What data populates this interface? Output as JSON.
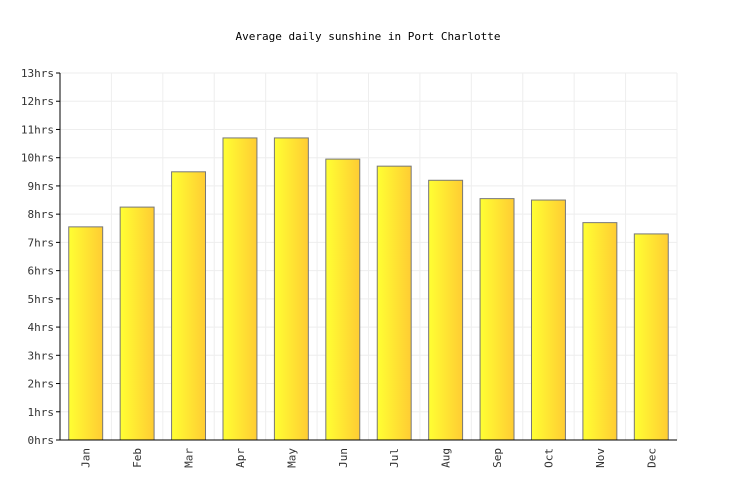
{
  "colors": {
    "bar_light": "#ffff33",
    "bar_dark": "#ffcc33",
    "bar_stroke": "#777777",
    "grid": "#eeeeee",
    "axis": "#000000"
  },
  "chart_data": {
    "type": "bar",
    "title": "Average daily sunshine in Port Charlotte",
    "xlabel": "",
    "ylabel": "",
    "ylim": [
      0,
      13
    ],
    "grid": true,
    "legend": "none",
    "y_tick_labels": [
      "0hrs",
      "1hrs",
      "2hrs",
      "3hrs",
      "4hrs",
      "5hrs",
      "6hrs",
      "7hrs",
      "8hrs",
      "9hrs",
      "10hrs",
      "11hrs",
      "12hrs",
      "13hrs"
    ],
    "categories": [
      "Jan",
      "Feb",
      "Mar",
      "Apr",
      "May",
      "Jun",
      "Jul",
      "Aug",
      "Sep",
      "Oct",
      "Nov",
      "Dec"
    ],
    "values": [
      7.55,
      8.25,
      9.5,
      10.7,
      10.7,
      9.95,
      9.7,
      9.2,
      8.55,
      8.5,
      7.7,
      7.3
    ]
  }
}
